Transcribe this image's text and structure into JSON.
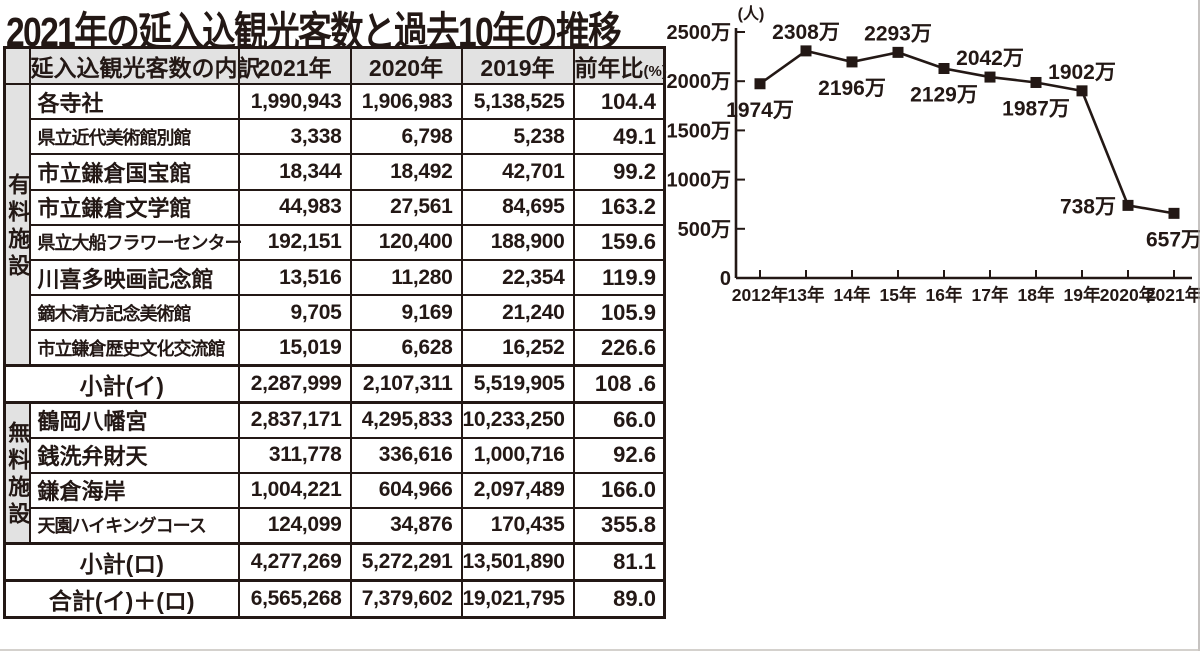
{
  "title": "2021年の延入込観光客数と過去10年の推移",
  "ink_color": "#231815",
  "header_fill": "#e2e2e2",
  "table": {
    "header": {
      "breakdown": "延入込観光客数の内訳",
      "y2021": "2021年",
      "y2020": "2020年",
      "y2019": "2019年",
      "yoy_main": "前年比",
      "yoy_suffix": "(%)"
    },
    "sections": [
      {
        "type": "group",
        "label": "有料施設",
        "rows": [
          {
            "name": "各寺社",
            "values": [
              "1,990,943",
              "1,906,983",
              "5,138,525",
              "104.4"
            ]
          },
          {
            "name": "県立近代美術館別館",
            "values": [
              "3,338",
              "6,798",
              "5,238",
              "49.1"
            ]
          },
          {
            "name": "市立鎌倉国宝館",
            "values": [
              "18,344",
              "18,492",
              "42,701",
              "99.2"
            ]
          },
          {
            "name": "市立鎌倉文学館",
            "values": [
              "44,983",
              "27,561",
              "84,695",
              "163.2"
            ]
          },
          {
            "name": "県立大船フラワーセンター",
            "values": [
              "192,151",
              "120,400",
              "188,900",
              "159.6"
            ]
          },
          {
            "name": "川喜多映画記念館",
            "values": [
              "13,516",
              "11,280",
              "22,354",
              "119.9"
            ]
          },
          {
            "name": "鏑木清方記念美術館",
            "values": [
              "9,705",
              "9,169",
              "21,240",
              "105.9"
            ]
          },
          {
            "name": "市立鎌倉歴史文化交流館",
            "values": [
              "15,019",
              "6,628",
              "16,252",
              "226.6"
            ]
          }
        ]
      },
      {
        "type": "subtotal",
        "label": "小計(イ)",
        "values": [
          "2,287,999",
          "2,107,311",
          "5,519,905",
          "108 .6"
        ]
      },
      {
        "type": "group",
        "label": "無料施設",
        "rows": [
          {
            "name": "鶴岡八幡宮",
            "values": [
              "2,837,171",
              "4,295,833",
              "10,233,250",
              "66.0"
            ]
          },
          {
            "name": "銭洗弁財天",
            "values": [
              "311,778",
              "336,616",
              "1,000,716",
              "92.6"
            ]
          },
          {
            "name": "鎌倉海岸",
            "values": [
              "1,004,221",
              "604,966",
              "2,097,489",
              "166.0"
            ]
          },
          {
            "name": "天園ハイキングコース",
            "values": [
              "124,099",
              "34,876",
              "170,435",
              "355.8"
            ]
          }
        ]
      },
      {
        "type": "subtotal",
        "label": "小計(ロ)",
        "values": [
          "4,277,269",
          "5,272,291",
          "13,501,890",
          "81.1"
        ]
      },
      {
        "type": "total",
        "label": "合計(イ)＋(ロ)",
        "values": [
          "6,565,268",
          "7,379,602",
          "19,021,795",
          "89.0"
        ]
      }
    ]
  },
  "chart_data": {
    "type": "line",
    "title": "",
    "unit_label": "(人)",
    "x": [
      "2012年",
      "13年",
      "14年",
      "15年",
      "16年",
      "17年",
      "18年",
      "19年",
      "2020年",
      "2021年"
    ],
    "values_10k": [
      1974,
      2308,
      2196,
      2293,
      2129,
      2042,
      1987,
      1902,
      738,
      657
    ],
    "point_labels": [
      "1974万",
      "2308万",
      "2196万",
      "2293万",
      "2129万",
      "2042万",
      "1987万",
      "1902万",
      "738万",
      "657万"
    ],
    "y_ticks": [
      {
        "value": 2500,
        "label": "2500万"
      },
      {
        "value": 2000,
        "label": "2000万"
      },
      {
        "value": 1500,
        "label": "1500万"
      },
      {
        "value": 1000,
        "label": "1000万"
      },
      {
        "value": 500,
        "label": "500万"
      },
      {
        "value": 0,
        "label": "0"
      }
    ],
    "ylim": [
      0,
      2500
    ],
    "grid": false,
    "legend": "none",
    "marker": "square",
    "label_placement": [
      "below",
      "above",
      "below",
      "above",
      "below",
      "above",
      "below",
      "above",
      "left",
      "below"
    ]
  }
}
